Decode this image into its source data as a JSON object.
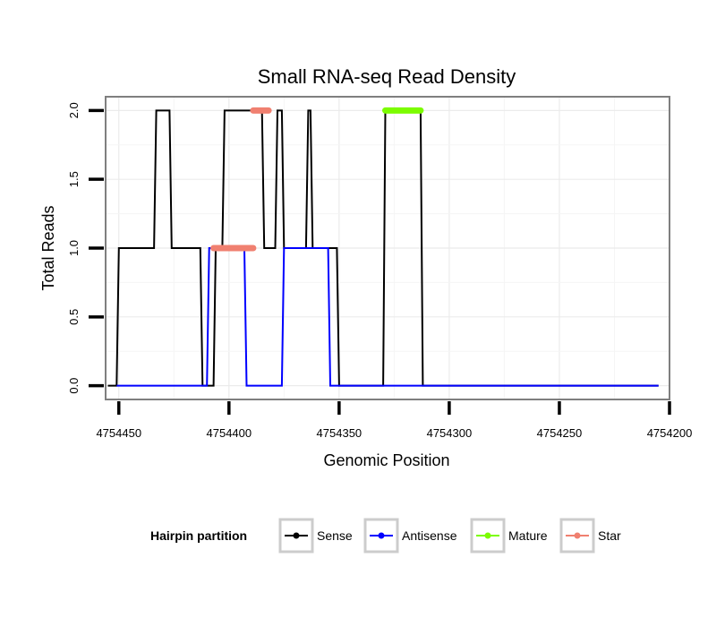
{
  "chart_data": {
    "type": "line",
    "title": "Small RNA-seq Read Density",
    "xlabel": "Genomic Position",
    "ylabel": "Total Reads",
    "xlim": [
      4754456,
      4754200
    ],
    "ylim": [
      -0.1,
      2.1
    ],
    "x_ticks": [
      4754450,
      4754400,
      4754350,
      4754300,
      4754250,
      4754200
    ],
    "x_tick_labels": [
      "4754450",
      "4754400",
      "4754350",
      "4754300",
      "4754250",
      "4754200"
    ],
    "y_ticks": [
      0,
      0.5,
      1,
      1.5,
      2
    ],
    "y_tick_labels": [
      "0.0",
      "0.5",
      "1.0",
      "1.5",
      "2.0"
    ],
    "grid": true,
    "legend": {
      "title": "Hairpin partition",
      "position": "bottom",
      "entries": [
        {
          "name": "Sense",
          "color": "#000000"
        },
        {
          "name": "Antisense",
          "color": "#0000ff"
        },
        {
          "name": "Mature",
          "color": "#7cfc00"
        },
        {
          "name": "Star",
          "color": "#f08070"
        }
      ]
    },
    "series": [
      {
        "name": "Sense",
        "color": "#000000",
        "width": 2,
        "x": [
          4754455,
          4754451,
          4754450,
          4754434,
          4754433,
          4754427,
          4754426,
          4754413,
          4754412,
          4754407,
          4754406,
          4754403,
          4754402,
          4754385,
          4754384,
          4754379,
          4754378,
          4754376,
          4754375,
          4754365,
          4754364,
          4754363,
          4754362,
          4754351,
          4754350,
          4754347,
          4754346,
          4754330,
          4754329,
          4754313,
          4754312,
          4754205
        ],
        "y": [
          0,
          0,
          1,
          1,
          2,
          2,
          1,
          1,
          0,
          0,
          1,
          1,
          2,
          2,
          1,
          1,
          2,
          2,
          1,
          1,
          2,
          2,
          1,
          1,
          0,
          0,
          0,
          0,
          2,
          2,
          0,
          0
        ]
      },
      {
        "name": "Antisense",
        "color": "#0000ff",
        "width": 2,
        "x": [
          4754451,
          4754410,
          4754409,
          4754393,
          4754392,
          4754376,
          4754375,
          4754355,
          4754354,
          4754205
        ],
        "y": [
          0,
          0,
          1,
          1,
          0,
          0,
          1,
          1,
          0,
          0
        ]
      },
      {
        "name": "Mature",
        "color": "#7cfc00",
        "width": 7,
        "x": [
          4754329,
          4754313
        ],
        "y": [
          2,
          2
        ]
      },
      {
        "name": "Star",
        "color": "#f08070",
        "width": 7,
        "x": [
          4754407,
          4754389
        ],
        "y": [
          1,
          1
        ]
      },
      {
        "name": "Star",
        "color": "#f08070",
        "width": 7,
        "x": [
          4754389,
          4754382
        ],
        "y": [
          2,
          2
        ]
      }
    ]
  }
}
